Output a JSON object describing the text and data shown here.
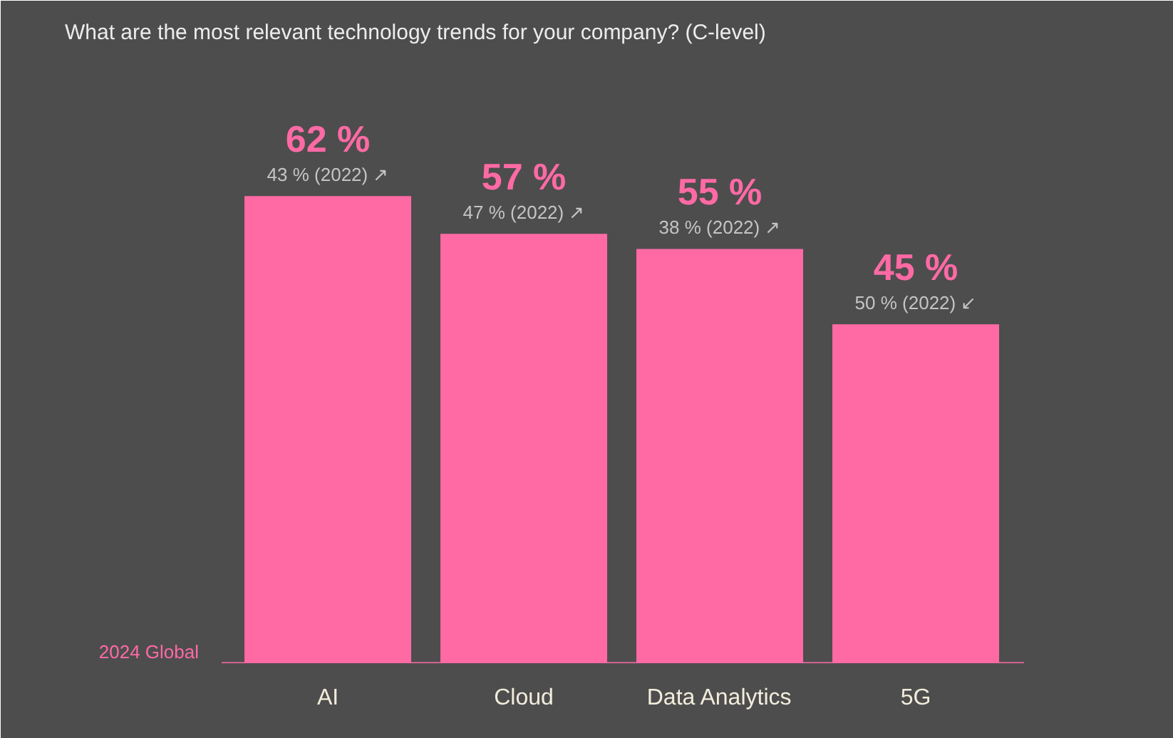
{
  "chart_data": {
    "type": "bar",
    "title": "What are the most relevant technology trends for your company? (C-level)",
    "categories": [
      "AI",
      "Cloud",
      "Data Analytics",
      "5G"
    ],
    "series": [
      {
        "name": "2024 Global",
        "color": "#ff6aa5",
        "values": [
          62,
          57,
          55,
          45
        ],
        "value_labels": [
          "62 %",
          "57 %",
          "55 %",
          "45 %"
        ]
      }
    ],
    "annotations": [
      {
        "text": "43 % (2022) ↗",
        "x": "AI",
        "y": 62
      },
      {
        "text": "47 % (2022) ↗",
        "x": "Cloud",
        "y": 57
      },
      {
        "text": "38 % (2022) ↗",
        "x": "Data Analytics",
        "y": 55
      },
      {
        "text": "50 % (2022) ↙",
        "x": "5G",
        "y": 45
      }
    ],
    "ylim": [
      0,
      80
    ],
    "tick_labels": "x"
  }
}
